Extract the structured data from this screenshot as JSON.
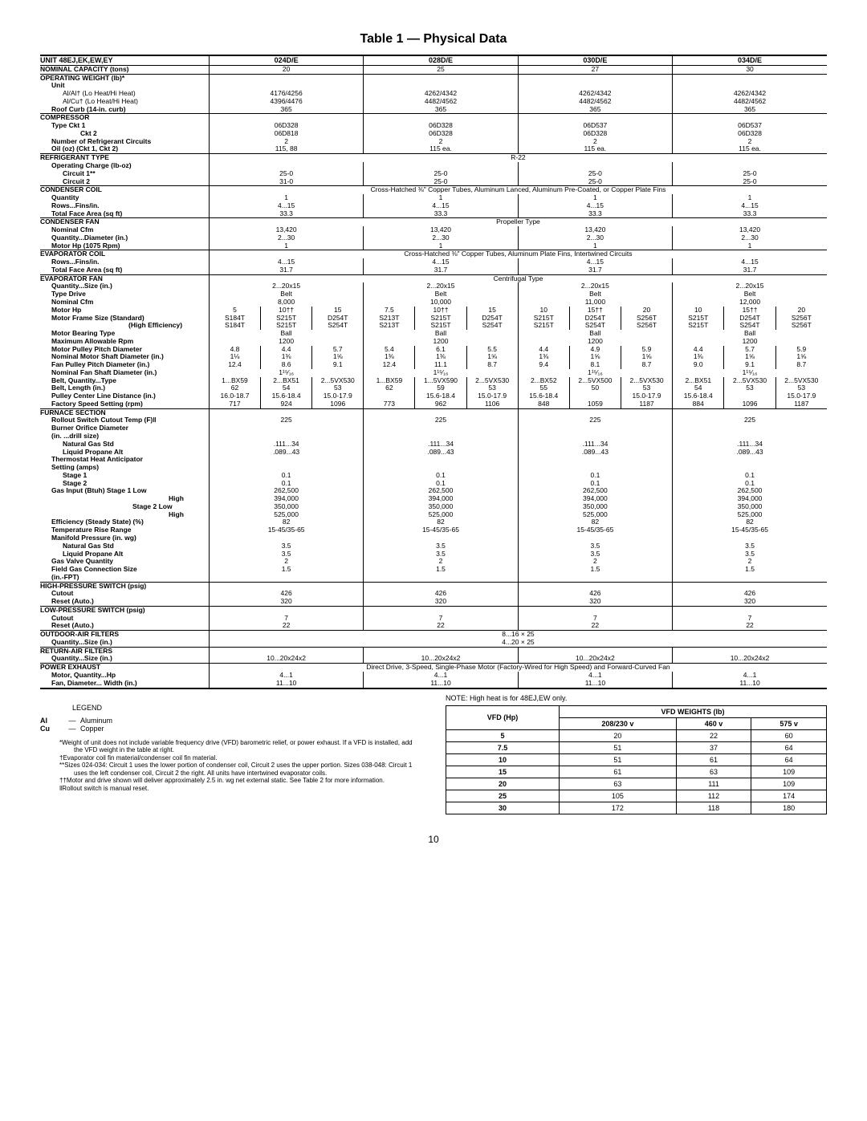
{
  "title": "Table 1 — Physical Data",
  "page": "10",
  "cols": [
    "024D/E",
    "028D/E",
    "030D/E",
    "034D/E"
  ],
  "rows": {
    "unit_label": "UNIT 48EJ,EK,EW,EY",
    "nom_cap": {
      "label": "NOMINAL CAPACITY (tons)",
      "v": [
        "20",
        "25",
        "27",
        "30"
      ]
    },
    "op_wt": {
      "label": "OPERATING WEIGHT (lb)*",
      "unit": "Unit",
      "alal": "Al/Al† (Lo Heat/Hi Heat)",
      "alcu": "Al/Cu† (Lo Heat/Hi Heat)",
      "roof": "Roof Curb (14-in. curb)",
      "alal_v": [
        "4176/4256",
        "4262/4342",
        "4262/4342",
        "4262/4342"
      ],
      "alcu_v": [
        "4396/4476",
        "4482/4562",
        "4482/4562",
        "4482/4562"
      ],
      "roof_v": [
        "365",
        "365",
        "365",
        "365"
      ]
    },
    "comp": {
      "label": "COMPRESSOR",
      "type": "Type   Ckt 1",
      "type_v": [
        "06D328",
        "06D328",
        "06D537",
        "06D537"
      ],
      "ckt2": "Ckt 2",
      "ckt2_v": [
        "06D818",
        "06D328",
        "06D328",
        "06D328"
      ],
      "num": "Number of Refrigerant Circuits",
      "num_v": [
        "2",
        "2",
        "2",
        "2"
      ],
      "oil": "Oil (oz) (Ckt 1, Ckt 2)",
      "oil_v": [
        "115, 88",
        "115 ea.",
        "115 ea.",
        "115 ea."
      ]
    },
    "refr": {
      "label": "REFRIGERANT TYPE",
      "span": "R-22",
      "ocl": "Operating Charge (lb-oz)",
      "c1": "Circuit 1**",
      "c1_v": [
        "25-0",
        "25-0",
        "25-0",
        "25-0"
      ],
      "c2": "Circuit 2",
      "c2_v": [
        "31-0",
        "25-0",
        "25-0",
        "25-0"
      ]
    },
    "cond_coil": {
      "label": "CONDENSER COIL",
      "span": "Cross-Hatched ⅜\" Copper Tubes, Aluminum Lanced, Aluminum Pre-Coated, or Copper Plate Fins",
      "qty": "Quantity",
      "qty_v": [
        "1",
        "1",
        "1",
        "1"
      ],
      "rows": "Rows...Fins/in.",
      "rows_v": [
        "4...15",
        "4...15",
        "4...15",
        "4...15"
      ],
      "tfa": "Total Face Area (sq ft)",
      "tfa_v": [
        "33.3",
        "33.3",
        "33.3",
        "33.3"
      ]
    },
    "cond_fan": {
      "label": "CONDENSER FAN",
      "span": "Propeller Type",
      "cfm": "Nominal Cfm",
      "cfm_v": [
        "13,420",
        "13,420",
        "13,420",
        "13,420"
      ],
      "dia": "Quantity...Diameter (in.)",
      "dia_v": [
        "2...30",
        "2...30",
        "2...30",
        "2...30"
      ],
      "hp": "Motor Hp (1075 Rpm)",
      "hp_v": [
        "1",
        "1",
        "1",
        "1"
      ]
    },
    "evap_coil": {
      "label": "EVAPORATOR COIL",
      "span": "Cross-Hatched ⅜\" Copper Tubes, Aluminum Plate Fins, Intertwined Circuits",
      "rows": "Rows...Fins/in.",
      "rows_v": [
        "4...15",
        "4...15",
        "4...15",
        "4...15"
      ],
      "tfa": "Total Face Area (sq ft)",
      "tfa_v": [
        "31.7",
        "31.7",
        "31.7",
        "31.7"
      ]
    },
    "evap_fan": {
      "label": "EVAPORATOR FAN",
      "span": "Centrifugal Type",
      "qty": "Quantity...Size (in.)",
      "qty_v": [
        "2...20x15",
        "2...20x15",
        "2...20x15",
        "2...20x15"
      ],
      "td": "Type Drive",
      "td_v": [
        "Belt",
        "Belt",
        "Belt",
        "Belt"
      ],
      "ncfm": "Nominal Cfm",
      "ncfm_v": [
        "8,000",
        "10,000",
        "11,000",
        "12,000"
      ],
      "mhp": "Motor Hp",
      "mhp_v": [
        [
          "5",
          "10††",
          "15"
        ],
        [
          "7.5",
          "10††",
          "15"
        ],
        [
          "10",
          "15††",
          "20"
        ],
        [
          "10",
          "15††",
          "20"
        ]
      ],
      "mfs1": "Motor Frame Size (Standard)",
      "mfs1_v": [
        [
          "S184T",
          "S215T",
          "D254T"
        ],
        [
          "S213T",
          "S215T",
          "D254T"
        ],
        [
          "S215T",
          "D254T",
          "S256T"
        ],
        [
          "S215T",
          "D254T",
          "S256T"
        ]
      ],
      "mfs2": "(High Efficiency)",
      "mfs2_v": [
        [
          "S184T",
          "S215T",
          "S254T"
        ],
        [
          "S213T",
          "S215T",
          "S254T"
        ],
        [
          "S215T",
          "S254T",
          "S256T"
        ],
        [
          "S215T",
          "S254T",
          "S256T"
        ]
      ],
      "mbt": "Motor Bearing Type",
      "mbt_v": [
        "Ball",
        "Ball",
        "Ball",
        "Ball"
      ],
      "mar": "Maximum Allowable Rpm",
      "mar_v": [
        "1200",
        "1200",
        "1200",
        "1200"
      ],
      "mppd": "Motor Pulley Pitch Diameter",
      "mppd_v": [
        [
          "4.8",
          "4.4",
          "5.7"
        ],
        [
          "5.4",
          "6.1",
          "5.5"
        ],
        [
          "4.4",
          "4.9",
          "5.9"
        ],
        [
          "4.4",
          "5.7",
          "5.9"
        ]
      ],
      "nmsd": "Nominal Motor Shaft Diameter (in.)",
      "nmsd_v": [
        [
          "1⅛",
          "1⅜",
          "1⅝"
        ],
        [
          "1⅜",
          "1⅜",
          "1⅝"
        ],
        [
          "1⅜",
          "1⅝",
          "1⅝"
        ],
        [
          "1⅜",
          "1⅝",
          "1⅝"
        ]
      ],
      "fppd": "Fan Pulley Pitch Diameter (in.)",
      "fppd_v": [
        [
          "12.4",
          "8.6",
          "9.1"
        ],
        [
          "12.4",
          "11.1",
          "8.7"
        ],
        [
          "9.4",
          "8.1",
          "8.7"
        ],
        [
          "9.0",
          "9.1",
          "8.7"
        ]
      ],
      "nfsd": "Nominal Fan Shaft Diameter (in.)",
      "nfsd_v": [
        "1¹⁵⁄₁₆",
        "1¹⁵⁄₁₆",
        "1¹⁵⁄₁₆",
        "1¹⁵⁄₁₆"
      ],
      "bqt": "Belt, Quantity...Type",
      "bqt_v": [
        [
          "1...BX59",
          "2...BX51",
          "2...5VX530"
        ],
        [
          "1...BX59",
          "1...5VX590",
          "2...5VX530"
        ],
        [
          "2...BX52",
          "2...5VX500",
          "2...5VX530"
        ],
        [
          "2...BX51",
          "2...5VX530",
          "2...5VX530"
        ]
      ],
      "blen": "Belt, Length (in.)",
      "blen_v": [
        [
          "62",
          "54",
          "53"
        ],
        [
          "62",
          "59",
          "53"
        ],
        [
          "55",
          "50",
          "53"
        ],
        [
          "54",
          "53",
          "53"
        ]
      ],
      "pcld": "Pulley Center Line Distance (in.)",
      "pcld_v": [
        [
          "16.0-18.7",
          "15.6-18.4",
          "15.0-17.9"
        ],
        [
          "",
          "15.6-18.4",
          "15.0-17.9"
        ],
        [
          "15.6-18.4",
          "",
          "15.0-17.9"
        ],
        [
          "15.6-18.4",
          "",
          "15.0-17.9"
        ]
      ],
      "fss": "Factory Speed Setting (rpm)",
      "fss_v": [
        [
          "717",
          "924",
          "1096"
        ],
        [
          "773",
          "962",
          "1106"
        ],
        [
          "848",
          "1059",
          "1187"
        ],
        [
          "884",
          "1096",
          "1187"
        ]
      ]
    },
    "furnace": {
      "label": "FURNACE SECTION",
      "rs": "Rollout Switch Cutout Temp (F)‖",
      "rs_v": [
        "225",
        "225",
        "225",
        "225"
      ],
      "bod": "Burner Orifice Diameter",
      "bod2": "(in. ...drill size)",
      "ng": "Natural Gas        Std",
      "ng_v": [
        ".111...34",
        ".111...34",
        ".111...34",
        ".111...34"
      ],
      "lp": "Liquid Propane   Alt",
      "lp_v": [
        ".089...43",
        ".089...43",
        ".089...43",
        ".089...43"
      ],
      "tha": "Thermostat Heat Anticipator",
      "set": "Setting (amps)",
      "s1": "Stage 1",
      "s1_v": [
        "0.1",
        "0.1",
        "0.1",
        "0.1"
      ],
      "s2": "Stage 2",
      "s2_v": [
        "0.1",
        "0.1",
        "0.1",
        "0.1"
      ],
      "gi": "Gas Input (Btuh)      Stage 1   Low",
      "gi1l_v": [
        "262,500",
        "262,500",
        "262,500",
        "262,500"
      ],
      "gi1h": "High",
      "gi1h_v": [
        "394,000",
        "394,000",
        "394,000",
        "394,000"
      ],
      "gi2l": "Stage 2   Low",
      "gi2l_v": [
        "350,000",
        "350,000",
        "350,000",
        "350,000"
      ],
      "gi2h": "High",
      "gi2h_v": [
        "525,000",
        "525,000",
        "525,000",
        "525,000"
      ],
      "eff": "Efficiency (Steady State) (%)",
      "eff_v": [
        "82",
        "82",
        "82",
        "82"
      ],
      "trr": "Temperature Rise Range",
      "trr_v": [
        "15-45/35-65",
        "15-45/35-65",
        "15-45/35-65",
        "15-45/35-65"
      ],
      "mp": "Manifold Pressure (in. wg)",
      "mpng": "Natural Gas         Std",
      "mpng_v": [
        "3.5",
        "3.5",
        "3.5",
        "3.5"
      ],
      "mplp": "Liquid Propane    Alt",
      "mplp_v": [
        "3.5",
        "3.5",
        "3.5",
        "3.5"
      ],
      "gvq": "Gas Valve Quantity",
      "gvq_v": [
        "2",
        "2",
        "2",
        "2"
      ],
      "fgcs": "Field Gas Connection Size",
      "fgcs_v": [
        "1.5",
        "1.5",
        "1.5",
        "1.5"
      ],
      "fgcs2": "(in.-FPT)"
    },
    "hps": {
      "label": "HIGH-PRESSURE SWITCH (psig)",
      "co": "Cutout",
      "co_v": [
        "426",
        "426",
        "426",
        "426"
      ],
      "ra": "Reset (Auto.)",
      "ra_v": [
        "320",
        "320",
        "320",
        "320"
      ]
    },
    "lps": {
      "label": "LOW-PRESSURE SWITCH (psig)",
      "co": "Cutout",
      "co_v": [
        "7",
        "7",
        "7",
        "7"
      ],
      "ra": "Reset (Auto.)",
      "ra_v": [
        "22",
        "22",
        "22",
        "22"
      ]
    },
    "oaf": {
      "label": "OUTDOOR-AIR FILTERS",
      "qs": "Quantity...Size (in.)",
      "qs_v": "8...16 × 25\n4...20 × 25"
    },
    "raf": {
      "label": "RETURN-AIR FILTERS",
      "qs": "Quantity...Size (in.)",
      "qs_v": [
        "10...20x24x2",
        "10...20x24x2",
        "10...20x24x2",
        "10...20x24x2"
      ]
    },
    "pe": {
      "label": "POWER EXHAUST",
      "span": "Direct Drive, 3-Speed, Single-Phase Motor (Factory-Wired for High Speed) and Forward-Curved Fan",
      "mq": "Motor, Quantity...Hp",
      "mq_v": [
        "4...1",
        "4...1",
        "4...1",
        "4...1"
      ],
      "fd": "Fan, Diameter... Width (in.)",
      "fd_v": [
        "11...10",
        "11...10",
        "11...10",
        "11...10"
      ]
    }
  },
  "legend_title": "LEGEND",
  "legend": [
    {
      "k": "Al",
      "v": "Aluminum"
    },
    {
      "k": "Cu",
      "v": "Copper"
    }
  ],
  "notes": [
    "*Weight of unit does not include variable frequency drive (VFD) barometric relief, or power exhaust. If a VFD is installed, add the VFD weight in the table at right.",
    "†Evaporator coil fin material/condenser coil fin material.",
    "**Sizes 024-034: Circuit 1 uses the lower portion of condenser coil, Circuit 2 uses the upper portion. Sizes 038-048: Circuit 1 uses the left condenser coil, Circuit 2 the right. All units have intertwined evaporator coils.",
    "††Motor and drive shown will deliver approximately 2.5 in. wg net external static. See Table 2 for more information.",
    "‖Rollout switch is manual reset."
  ],
  "note_right": "NOTE: High heat is for 48EJ,EW only.",
  "vfd": {
    "h1": "VFD (Hp)",
    "h2": "VFD WEIGHTS (lb)",
    "cols": [
      "208/230 v",
      "460 v",
      "575 v"
    ],
    "rows": [
      [
        "5",
        "20",
        "22",
        "60"
      ],
      [
        "7.5",
        "51",
        "37",
        "64"
      ],
      [
        "10",
        "51",
        "61",
        "64"
      ],
      [
        "15",
        "61",
        "63",
        "109"
      ],
      [
        "20",
        "63",
        "111",
        "109"
      ],
      [
        "25",
        "105",
        "112",
        "174"
      ],
      [
        "30",
        "172",
        "118",
        "180"
      ]
    ]
  }
}
